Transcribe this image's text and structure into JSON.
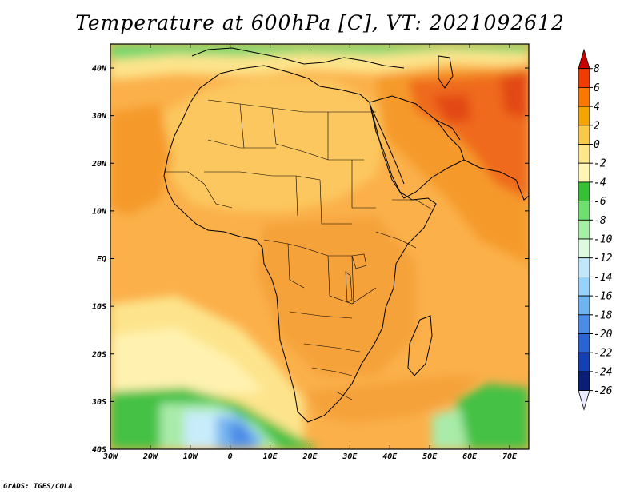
{
  "title": "Temperature at 600hPa [C], VT: 2021092612",
  "credit": "GrADS: IGES/COLA",
  "map": {
    "lon_range": [
      -30,
      75
    ],
    "lat_range": [
      -40,
      45
    ],
    "y_ticks": [
      "40N",
      "30N",
      "20N",
      "10N",
      "EQ",
      "10S",
      "20S",
      "30S",
      "40S"
    ],
    "x_ticks": [
      "30W",
      "20W",
      "10W",
      "0",
      "10E",
      "20E",
      "30E",
      "40E",
      "50E",
      "60E",
      "70E"
    ],
    "grid": false
  },
  "colorbar": {
    "labels": [
      "8",
      "6",
      "4",
      "2",
      "0",
      "-2",
      "-4",
      "-6",
      "-8",
      "-10",
      "-12",
      "-14",
      "-16",
      "-18",
      "-20",
      "-22",
      "-24",
      "-26"
    ],
    "colors": [
      "#c80000",
      "#f03c00",
      "#fa7800",
      "#f5a500",
      "#fac94a",
      "#fde68a",
      "#fff5b4",
      "#35c035",
      "#6fe06f",
      "#a6f0a6",
      "#dcfae0",
      "#c0e8fa",
      "#96d2fa",
      "#6eb4f0",
      "#4b8ce6",
      "#2a64d2",
      "#1440b4",
      "#0a1e78",
      "#eaeaff"
    ]
  },
  "colors": {
    "sea": "#fbb04a",
    "land": "#fcc75e",
    "warm": "#f59a2c",
    "hot": "#ef6a1e",
    "cool_band": "#fde48c",
    "cold_green": "#45c145",
    "cold_light": "#a9eba9",
    "cold_blue": "#7ab8f0"
  }
}
